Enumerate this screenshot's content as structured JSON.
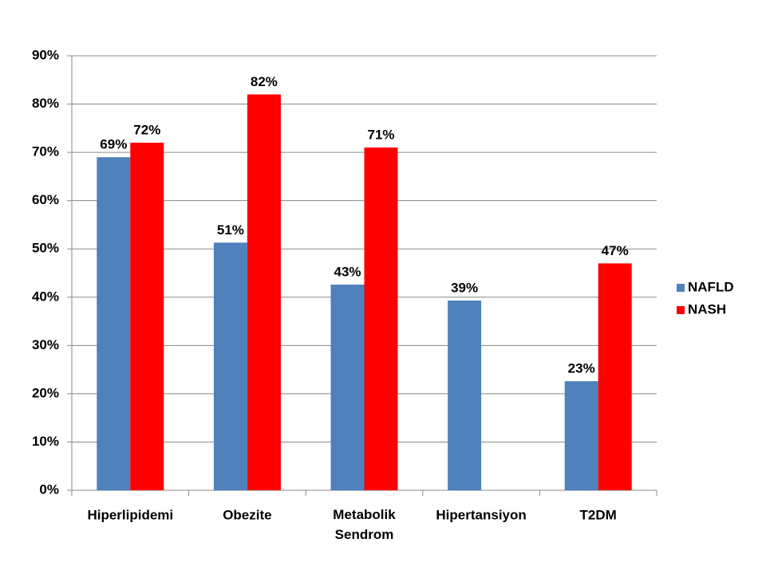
{
  "chart_data": {
    "type": "bar",
    "categories": [
      "Hiperlipidemi",
      "Obezite",
      "Metabolik Sendrom",
      "Hipertansiyon",
      "T2DM"
    ],
    "series": [
      {
        "name": "NAFLD",
        "color": "#4f81bd",
        "values": [
          69,
          51.3,
          42.6,
          39.3,
          22.6
        ],
        "value_labels": [
          "69%",
          "51%",
          "43%",
          "39%",
          "23%"
        ]
      },
      {
        "name": "NASH",
        "color": "#ff0000",
        "values": [
          72,
          82,
          71,
          null,
          47
        ],
        "value_labels": [
          "72%",
          "82%",
          "71%",
          null,
          "47%"
        ]
      }
    ],
    "ylim": [
      0,
      90
    ],
    "yticks": [
      {
        "value": 0,
        "label": "0%"
      },
      {
        "value": 10,
        "label": "10%"
      },
      {
        "value": 20,
        "label": "20%"
      },
      {
        "value": 30,
        "label": "30%"
      },
      {
        "value": 40,
        "label": "40%"
      },
      {
        "value": 50,
        "label": "50%"
      },
      {
        "value": 60,
        "label": "60%"
      },
      {
        "value": 70,
        "label": "70%"
      },
      {
        "value": 80,
        "label": "80%"
      },
      {
        "value": 90,
        "label": "90%"
      }
    ],
    "grid": true,
    "legend": "right"
  }
}
